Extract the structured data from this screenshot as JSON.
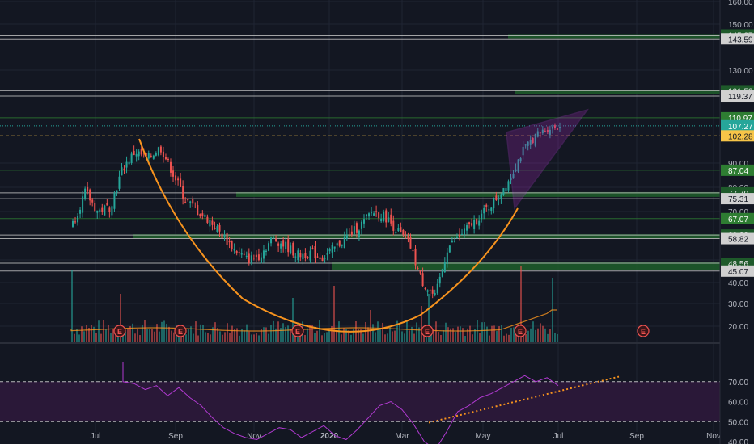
{
  "theme": {
    "background": "#131722",
    "grid": "#1f2433",
    "candle_up": "#26a69a",
    "candle_down": "#ef5350",
    "zone_green": "#1e5a2a",
    "level_line": "#a8a8a8",
    "green_line": "#2e7d32",
    "curve": "#f7931e",
    "wedge": "#9c27b0",
    "rsi_line": "#9c27b0",
    "rsi_band": "#2a1838",
    "current_price": "#f7c548"
  },
  "chart_data": [
    {
      "type": "candlestick",
      "x": [
        "Jul",
        "Sep",
        "Nov",
        "2020",
        "Mar",
        "May",
        "Jul",
        "Sep",
        "Nov"
      ],
      "price_axis_ticks": [
        "160.00",
        "150.00",
        "130.00",
        "90.00",
        "80.00",
        "70.00",
        "50.00",
        "40.00",
        "30.00",
        "20.00"
      ],
      "price_labels": [
        {
          "value": "145.27",
          "style": "zone"
        },
        {
          "value": "143.59",
          "style": "line"
        },
        {
          "value": "121.53",
          "style": "zone"
        },
        {
          "value": "119.37",
          "style": "line"
        },
        {
          "value": "110.97",
          "style": "green"
        },
        {
          "value": "107.27",
          "style": "teal"
        },
        {
          "value": "102.28",
          "style": "current"
        },
        {
          "value": "87.04",
          "style": "green"
        },
        {
          "value": "77.70",
          "style": "zone"
        },
        {
          "value": "75.31",
          "style": "line"
        },
        {
          "value": "67.07",
          "style": "green"
        },
        {
          "value": "60.29",
          "style": "zone"
        },
        {
          "value": "58.82",
          "style": "line"
        },
        {
          "value": "48.56",
          "style": "zone"
        },
        {
          "value": "45.07",
          "style": "line"
        }
      ],
      "earnings_markers": [
        "E",
        "E",
        "E",
        "E",
        "E",
        "E"
      ],
      "series": [
        {
          "name": "Price",
          "approx_close": [
            65,
            78,
            70,
            72,
            88,
            95,
            92,
            97,
            86,
            75,
            70,
            66,
            60,
            54,
            50,
            52,
            59,
            56,
            52,
            53,
            51,
            55,
            60,
            64,
            70,
            68,
            62,
            56,
            40,
            33,
            55,
            60,
            65,
            70,
            76,
            84,
            95,
            102,
            106,
            107
          ]
        }
      ]
    },
    {
      "type": "line",
      "name": "RSI",
      "rsi_axis_ticks": [
        "70.00",
        "60.00",
        "50.00",
        "40.00"
      ],
      "levels": [
        70,
        50
      ]
    }
  ]
}
